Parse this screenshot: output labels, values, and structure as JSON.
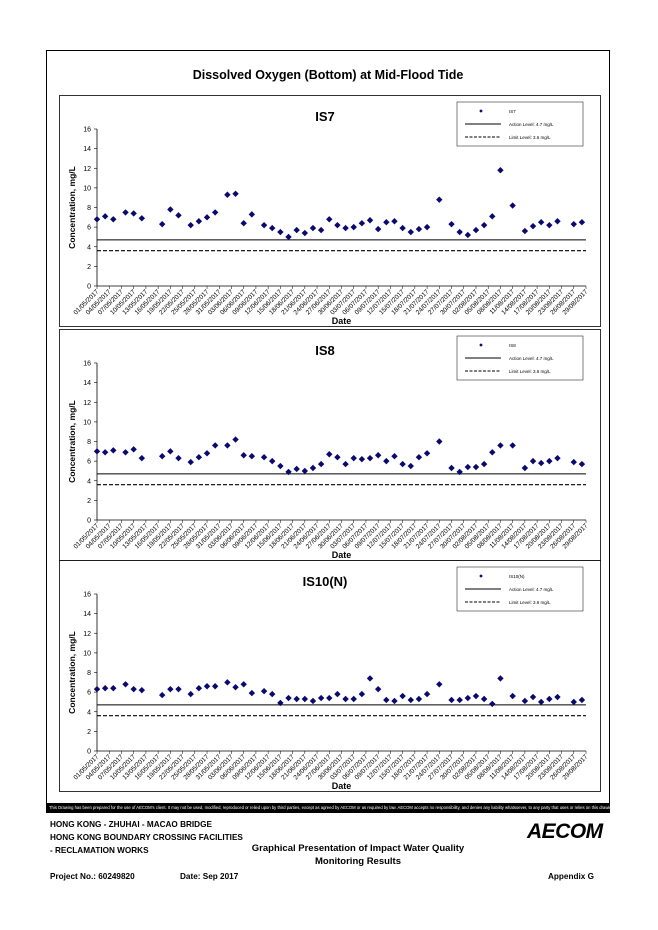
{
  "main_title": "Dissolved Oxygen (Bottom) at Mid-Flood Tide",
  "chart_data": [
    {
      "type": "scatter",
      "title": "IS7",
      "xlabel": "Date",
      "ylabel": "Concentration, mg/L",
      "ylim": [
        0,
        16
      ],
      "yticks": [
        0,
        2,
        4,
        6,
        8,
        10,
        12,
        14,
        16
      ],
      "x_tick_labels": [
        "01/05/2017",
        "04/05/2017",
        "07/05/2017",
        "10/05/2017",
        "13/05/2017",
        "16/05/2017",
        "19/05/2017",
        "22/05/2017",
        "25/05/2017",
        "28/05/2017",
        "31/05/2017",
        "03/06/2017",
        "06/06/2017",
        "09/06/2017",
        "12/06/2017",
        "15/06/2017",
        "18/06/2017",
        "21/06/2017",
        "24/06/2017",
        "27/06/2017",
        "30/06/2017",
        "03/07/2017",
        "06/07/2017",
        "09/07/2017",
        "12/07/2017",
        "15/07/2017",
        "18/07/2017",
        "21/07/2017",
        "24/07/2017",
        "27/07/2017",
        "30/07/2017",
        "02/08/2017",
        "05/08/2017",
        "08/08/2017",
        "11/08/2017",
        "14/08/2017",
        "17/08/2017",
        "20/08/2017",
        "23/08/2017",
        "26/08/2017",
        "29/08/2017"
      ],
      "legend": {
        "placement": "top-right",
        "entries": [
          "IS7",
          "Action Level: 4.7 mg/L",
          "Limit Level: 3.6 mg/L"
        ]
      },
      "action_level": 4.7,
      "limit_level": 3.6,
      "series": [
        {
          "name": "IS7",
          "x": [
            1,
            3,
            5,
            8,
            10,
            12,
            17,
            19,
            21,
            24,
            26,
            28,
            30,
            33,
            35,
            37,
            39,
            42,
            44,
            46,
            48,
            50,
            52,
            54,
            56,
            58,
            60,
            62,
            64,
            66,
            68,
            70,
            72,
            74,
            76,
            78,
            80,
            82,
            85,
            88,
            90,
            92,
            94,
            96,
            98,
            100,
            103,
            106,
            108,
            110,
            112,
            114,
            118,
            120
          ],
          "y": [
            6.8,
            7.1,
            6.8,
            7.5,
            7.4,
            6.9,
            6.3,
            7.8,
            7.2,
            6.2,
            6.6,
            7.0,
            7.5,
            9.3,
            9.4,
            6.4,
            7.3,
            6.2,
            5.9,
            5.5,
            5.0,
            5.7,
            5.4,
            5.9,
            5.7,
            6.8,
            6.2,
            5.9,
            6.0,
            6.4,
            6.7,
            5.8,
            6.5,
            6.6,
            5.9,
            5.5,
            5.8,
            6.0,
            8.8,
            6.3,
            5.5,
            5.2,
            5.7,
            6.2,
            7.1,
            11.8,
            8.2,
            5.6,
            6.1,
            6.5,
            6.2,
            6.6,
            6.3,
            6.5
          ]
        }
      ]
    },
    {
      "type": "scatter",
      "title": "IS8",
      "xlabel": "Date",
      "ylabel": "Concentration, mg/L",
      "ylim": [
        0,
        16
      ],
      "yticks": [
        0,
        2,
        4,
        6,
        8,
        10,
        12,
        14,
        16
      ],
      "x_tick_labels": [
        "01/05/2017",
        "04/05/2017",
        "07/05/2017",
        "10/05/2017",
        "13/05/2017",
        "16/05/2017",
        "19/05/2017",
        "22/05/2017",
        "25/05/2017",
        "28/05/2017",
        "31/05/2017",
        "03/06/2017",
        "06/06/2017",
        "09/06/2017",
        "12/06/2017",
        "15/06/2017",
        "18/06/2017",
        "21/06/2017",
        "24/06/2017",
        "27/06/2017",
        "30/06/2017",
        "03/07/2017",
        "06/07/2017",
        "09/07/2017",
        "12/07/2017",
        "15/07/2017",
        "18/07/2017",
        "21/07/2017",
        "24/07/2017",
        "27/07/2017",
        "30/07/2017",
        "02/08/2017",
        "05/08/2017",
        "08/08/2017",
        "11/08/2017",
        "14/08/2017",
        "17/08/2017",
        "20/08/2017",
        "23/08/2017",
        "26/08/2017",
        "29/08/2017"
      ],
      "legend": {
        "placement": "top-right",
        "entries": [
          "IS8",
          "Action Level: 4.7 mg/L",
          "Limit Level: 3.6 mg/L"
        ]
      },
      "action_level": 4.7,
      "limit_level": 3.6,
      "series": [
        {
          "name": "IS8",
          "x": [
            1,
            3,
            5,
            8,
            10,
            12,
            17,
            19,
            21,
            24,
            26,
            28,
            30,
            33,
            35,
            37,
            39,
            42,
            44,
            46,
            48,
            50,
            52,
            54,
            56,
            58,
            60,
            62,
            64,
            66,
            68,
            70,
            72,
            74,
            76,
            78,
            80,
            82,
            85,
            88,
            90,
            92,
            94,
            96,
            98,
            100,
            103,
            106,
            108,
            110,
            112,
            114,
            118,
            120
          ],
          "y": [
            7.0,
            6.9,
            7.1,
            6.9,
            7.2,
            6.3,
            6.5,
            7.0,
            6.3,
            5.9,
            6.4,
            6.8,
            7.6,
            7.6,
            8.2,
            6.6,
            6.5,
            6.4,
            6.0,
            5.5,
            4.9,
            5.2,
            5.0,
            5.3,
            5.7,
            6.7,
            6.4,
            5.7,
            6.3,
            6.2,
            6.3,
            6.6,
            6.0,
            6.5,
            5.7,
            5.5,
            6.4,
            6.8,
            8.0,
            5.3,
            4.9,
            5.4,
            5.4,
            5.7,
            6.9,
            7.6,
            7.6,
            5.3,
            6.0,
            5.8,
            6.0,
            6.3,
            5.9,
            5.7
          ]
        }
      ]
    },
    {
      "type": "scatter",
      "title": "IS10(N)",
      "xlabel": "Date",
      "ylabel": "Concentration, mg/L",
      "ylim": [
        0,
        16
      ],
      "yticks": [
        0,
        2,
        4,
        6,
        8,
        10,
        12,
        14,
        16
      ],
      "x_tick_labels": [
        "01/05/2017",
        "04/05/2017",
        "07/05/2017",
        "10/05/2017",
        "13/05/2017",
        "16/05/2017",
        "19/05/2017",
        "22/05/2017",
        "25/05/2017",
        "28/05/2017",
        "31/05/2017",
        "03/06/2017",
        "06/06/2017",
        "09/06/2017",
        "12/06/2017",
        "15/06/2017",
        "18/06/2017",
        "21/06/2017",
        "24/06/2017",
        "27/06/2017",
        "30/06/2017",
        "03/07/2017",
        "06/07/2017",
        "09/07/2017",
        "12/07/2017",
        "15/07/2017",
        "18/07/2017",
        "21/07/2017",
        "24/07/2017",
        "27/07/2017",
        "30/07/2017",
        "02/08/2017",
        "05/08/2017",
        "08/08/2017",
        "11/08/2017",
        "14/08/2017",
        "17/08/2017",
        "20/08/2017",
        "23/08/2017",
        "26/08/2017",
        "29/08/2017"
      ],
      "legend": {
        "placement": "top-right",
        "entries": [
          "IS10(N)",
          "Action Level: 4.7 mg/L",
          "Limit Level: 3.6 mg/L"
        ]
      },
      "action_level": 4.7,
      "limit_level": 3.6,
      "series": [
        {
          "name": "IS10(N)",
          "x": [
            1,
            3,
            5,
            8,
            10,
            12,
            17,
            19,
            21,
            24,
            26,
            28,
            30,
            33,
            35,
            37,
            39,
            42,
            44,
            46,
            48,
            50,
            52,
            54,
            56,
            58,
            60,
            62,
            64,
            66,
            68,
            70,
            72,
            74,
            76,
            78,
            80,
            82,
            85,
            88,
            90,
            92,
            94,
            96,
            98,
            100,
            103,
            106,
            108,
            110,
            112,
            114,
            118,
            120
          ],
          "y": [
            6.3,
            6.4,
            6.4,
            6.8,
            6.3,
            6.2,
            5.7,
            6.3,
            6.3,
            5.8,
            6.4,
            6.6,
            6.6,
            7.0,
            6.5,
            6.8,
            5.9,
            6.1,
            5.8,
            4.9,
            5.4,
            5.3,
            5.3,
            5.1,
            5.4,
            5.4,
            5.8,
            5.3,
            5.3,
            5.8,
            7.4,
            6.3,
            5.2,
            5.1,
            5.6,
            5.2,
            5.3,
            5.8,
            6.8,
            5.2,
            5.2,
            5.4,
            5.6,
            5.3,
            4.8,
            7.4,
            5.6,
            5.1,
            5.5,
            5.0,
            5.3,
            5.5,
            5.0,
            5.2
          ]
        }
      ]
    }
  ],
  "disclaimer": "This Drawing has been prepared for the use of AECOM's client. It may not be used, modified, reproduced or relied upon by third parties, except as agreed by AECOM or as required by law. AECOM accepts no responsibility, and denies any liability whatsoever, to any party that uses or relies on this drawing without AECOM's express written consent.",
  "footer": {
    "project_line1": "HONG KONG - ZHUHAI - MACAO BRIDGE",
    "project_line2": "HONG KONG BOUNDARY CROSSING FACILITIES",
    "project_line3": "- RECLAMATION WORKS",
    "title_line1": "Graphical Presentation of Impact Water Quality",
    "title_line2": "Monitoring Results",
    "project_no": "Project No.: 60249820",
    "date": "Date: Sep 2017",
    "appendix": "Appendix G",
    "logo": "AECOM"
  }
}
